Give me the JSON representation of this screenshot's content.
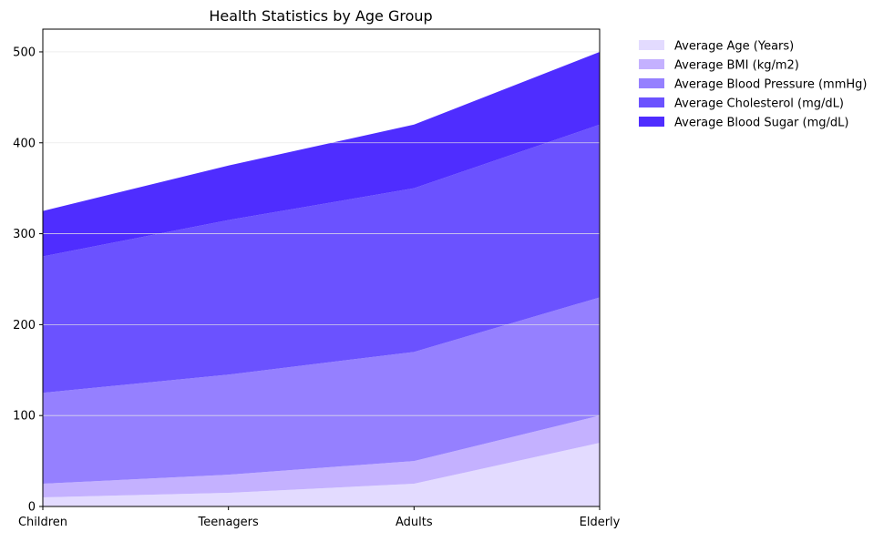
{
  "chart_data": {
    "type": "area",
    "stacked": true,
    "title": "Health Statistics by Age Group",
    "xlabel": "",
    "ylabel": "",
    "categories": [
      "Children",
      "Teenagers",
      "Adults",
      "Elderly"
    ],
    "ylim": [
      0,
      525
    ],
    "yticks": [
      0,
      100,
      200,
      300,
      400,
      500
    ],
    "grid": true,
    "legend_position": "outside-top-right",
    "series": [
      {
        "name": "Average Age (Years)",
        "values": [
          10,
          15,
          25,
          70
        ],
        "color": "#e3dbff"
      },
      {
        "name": "Average BMI (kg/m2)",
        "values": [
          15,
          20,
          25,
          30
        ],
        "color": "#c4b1ff"
      },
      {
        "name": "Average Blood Pressure (mmHg)",
        "values": [
          100,
          110,
          120,
          130
        ],
        "color": "#9580ff"
      },
      {
        "name": "Average Cholesterol (mg/dL)",
        "values": [
          150,
          170,
          180,
          190
        ],
        "color": "#6b52ff"
      },
      {
        "name": "Average Blood Sugar (mg/dL)",
        "values": [
          50,
          60,
          70,
          80
        ],
        "color": "#4f2dff"
      }
    ]
  }
}
